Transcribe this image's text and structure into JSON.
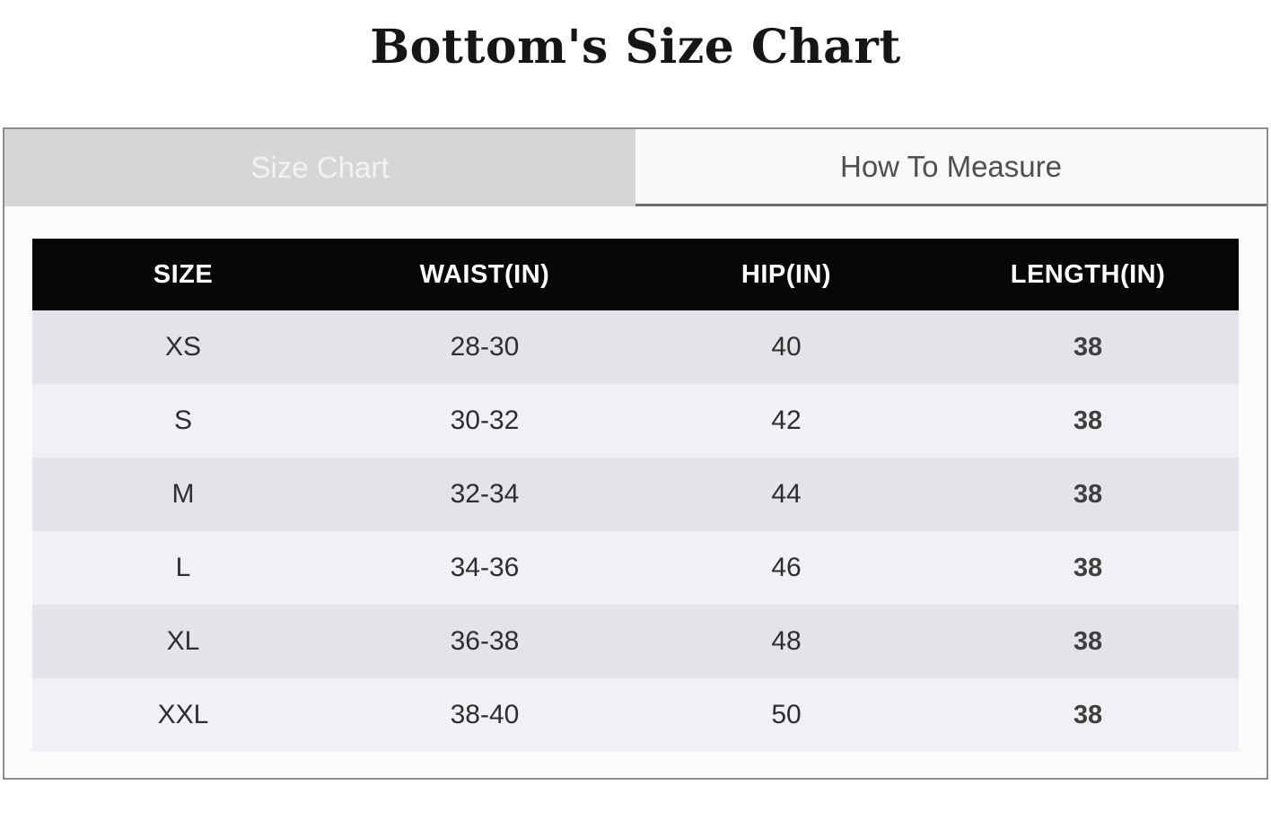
{
  "page": {
    "title": "Bottom's Size Chart"
  },
  "tabs": {
    "size_chart": {
      "label": "Size Chart",
      "active": true
    },
    "how_to_measure": {
      "label": "How To Measure",
      "active": false
    }
  },
  "size_table": {
    "columns": [
      "SIZE",
      "WAIST(IN)",
      "HIP(IN)",
      "LENGTH(IN)"
    ],
    "rows": [
      {
        "size": "XS",
        "waist": "28-30",
        "hip": "40",
        "length": "38"
      },
      {
        "size": "S",
        "waist": "30-32",
        "hip": "42",
        "length": "38"
      },
      {
        "size": "M",
        "waist": "32-34",
        "hip": "44",
        "length": "38"
      },
      {
        "size": "L",
        "waist": "34-36",
        "hip": "46",
        "length": "38"
      },
      {
        "size": "XL",
        "waist": "36-38",
        "hip": "48",
        "length": "38"
      },
      {
        "size": "XXL",
        "waist": "38-40",
        "hip": "50",
        "length": "38"
      }
    ]
  },
  "colors": {
    "header_bg": "#070707",
    "header_text": "#ffffff",
    "row_dark": "#e2e4ea",
    "row_light": "#f0f1f5",
    "active_tab_bg": "#d6d6d6",
    "active_tab_text": "#f2f2f2",
    "inactive_tab_bg": "#f9f9f9",
    "inactive_tab_text": "#4f4f4f",
    "inactive_tab_underline": "#6d6d6d",
    "panel_bg": "#fbfbfb",
    "panel_border": "#8d8d8d",
    "title_text": "#161616"
  }
}
